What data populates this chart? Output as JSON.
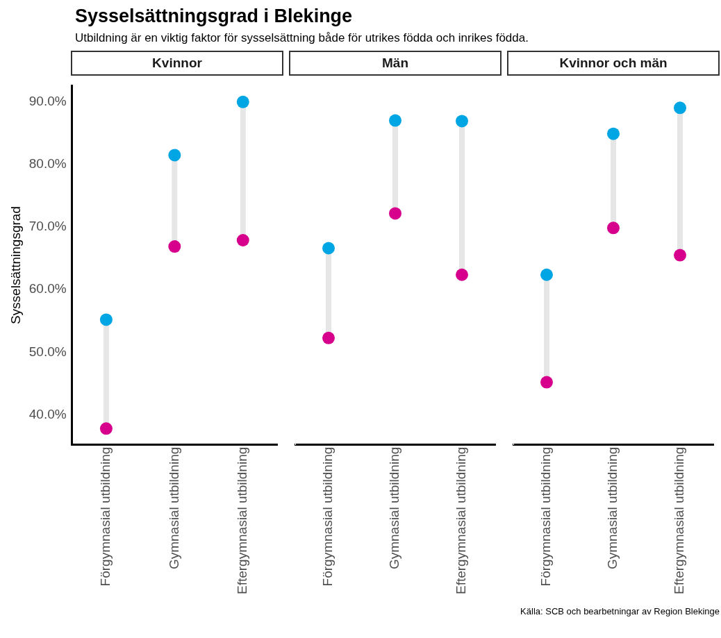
{
  "chart_data": [
    {
      "type": "other",
      "title": "Sysselsättningsgrad i Blekinge",
      "subtitle": "Utbildning är en viktig faktor för sysselsättning både för utrikes födda och inrikes födda."
    },
    {
      "type": "scatter",
      "title": "Kvinnor",
      "ylabel": "Sysselsättningsgrad",
      "categories": [
        "Förgymnasial utbildning",
        "Gymnasial utbildning",
        "Eftergymnasial utbildning"
      ],
      "ylim": [
        35.2,
        92.6
      ],
      "yticks": [
        {
          "value": 40,
          "label": "40.0%"
        },
        {
          "value": 50,
          "label": "50.0%"
        },
        {
          "value": 60,
          "label": "60.0%"
        },
        {
          "value": 70,
          "label": "70.0%"
        },
        {
          "value": 80,
          "label": "80.0%"
        },
        {
          "value": 90,
          "label": "90.0%"
        }
      ],
      "grid": false,
      "legend": false,
      "marker": "circle",
      "series": [
        {
          "color": "#d6008c",
          "values": [
            37.8,
            66.9,
            67.9
          ]
        },
        {
          "color": "#00a5e3",
          "values": [
            55.2,
            81.5,
            90.0
          ]
        }
      ]
    },
    {
      "type": "scatter",
      "title": "Män",
      "categories": [
        "Förgymnasial utbildning",
        "Gymnasial utbildning",
        "Eftergymnasial utbildning"
      ],
      "ylim": [
        35.2,
        92.6
      ],
      "tick_labels": "x",
      "grid": false,
      "legend": false,
      "marker": "circle",
      "series": [
        {
          "color": "#d6008c",
          "values": [
            52.1,
            71.8,
            62.1
          ]
        },
        {
          "color": "#00a5e3",
          "values": [
            66.3,
            86.5,
            86.4
          ]
        }
      ]
    },
    {
      "type": "scatter",
      "title": "Kvinnor och män",
      "categories": [
        "Förgymnasial utbildning",
        "Gymnasial utbildning",
        "Eftergymnasial utbildning"
      ],
      "ylim": [
        35.2,
        92.6
      ],
      "tick_labels": "x",
      "grid": false,
      "legend": false,
      "marker": "circle",
      "annotations": [
        "Källa: SCB och bearbetningar av Region Blekinge"
      ],
      "series": [
        {
          "color": "#d6008c",
          "values": [
            45.1,
            69.5,
            65.2
          ]
        },
        {
          "color": "#00a5e3",
          "values": [
            62.1,
            84.4,
            88.5
          ]
        }
      ]
    }
  ]
}
